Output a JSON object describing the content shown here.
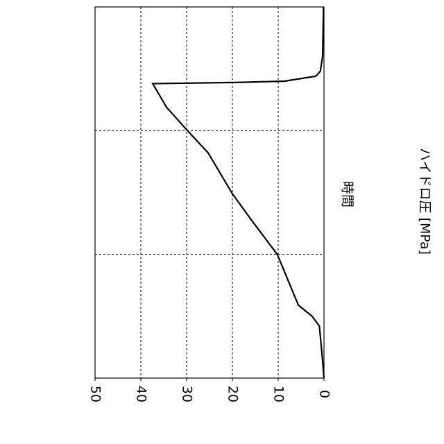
{
  "chart_data": {
    "type": "line",
    "x_label": "時間",
    "y_label": "ハイドロ圧 [MPa]",
    "xlim": [
      0,
      3
    ],
    "xticks": [
      1,
      2
    ],
    "ylim": [
      0,
      50
    ],
    "yticks": [
      0,
      10,
      20,
      30,
      40,
      50
    ],
    "grid": true,
    "color": "#000000",
    "x": [
      0,
      0.14,
      0.42,
      0.5,
      0.59,
      1.0,
      1.26,
      1.49,
      1.82,
      2.0,
      2.19,
      2.38,
      2.39,
      2.4,
      2.44,
      2.48,
      2.6,
      3.0
    ],
    "values": [
      0,
      0.3,
      1,
      2.6,
      5.6,
      10.2,
      15.5,
      20,
      25.3,
      29.8,
      34.4,
      37.4,
      18.5,
      8.6,
      1.8,
      0.8,
      0.3,
      0.1
    ]
  }
}
